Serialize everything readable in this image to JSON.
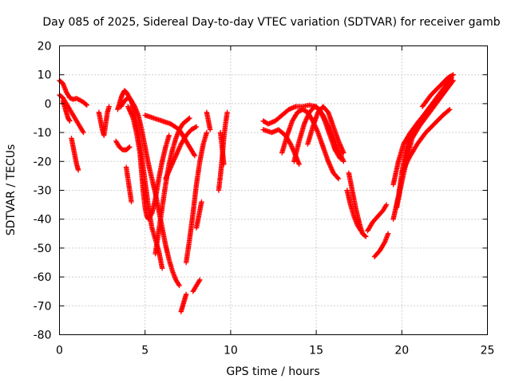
{
  "chart_data": {
    "type": "scatter",
    "title": "Day 085 of 2025, Sidereal Day-to-day VTEC variation (SDTVAR) for receiver gamb",
    "xlabel": "GPS time / hours",
    "ylabel": "SDTVAR / TECUs",
    "xlim": [
      0,
      25
    ],
    "ylim": [
      -80,
      20
    ],
    "xticks": [
      "0",
      "5",
      "10",
      "15",
      "20",
      "25"
    ],
    "yticks": [
      "20",
      "10",
      "0",
      "-10",
      "-20",
      "-30",
      "-40",
      "-50",
      "-60",
      "-70",
      "-80"
    ],
    "grid": true,
    "marker": "+",
    "color": "#ff0000",
    "series": [
      {
        "points": [
          [
            0.0,
            8
          ],
          [
            0.2,
            7
          ],
          [
            0.4,
            4
          ],
          [
            0.6,
            2
          ],
          [
            0.8,
            1.5
          ],
          [
            1.0,
            1.8
          ],
          [
            1.2,
            1.2
          ],
          [
            1.4,
            0.5
          ],
          [
            1.6,
            -0.5
          ]
        ]
      },
      {
        "points": [
          [
            0.0,
            3
          ],
          [
            0.2,
            2
          ],
          [
            0.4,
            0
          ],
          [
            0.6,
            -2
          ],
          [
            0.8,
            -4
          ],
          [
            1.0,
            -6
          ],
          [
            1.2,
            -8
          ],
          [
            1.4,
            -10
          ]
        ]
      },
      {
        "points": [
          [
            0.2,
            1
          ],
          [
            0.3,
            -1
          ],
          [
            0.4,
            -3
          ],
          [
            0.5,
            -5
          ],
          [
            0.6,
            -6
          ]
        ]
      },
      {
        "points": [
          [
            0.7,
            -12
          ],
          [
            0.8,
            -15
          ],
          [
            0.9,
            -18
          ],
          [
            1.0,
            -21
          ],
          [
            1.1,
            -23
          ]
        ]
      },
      {
        "points": [
          [
            2.3,
            -3
          ],
          [
            2.4,
            -6
          ],
          [
            2.5,
            -9
          ],
          [
            2.6,
            -11
          ],
          [
            2.7,
            -7
          ],
          [
            2.8,
            -3
          ],
          [
            2.9,
            -1
          ]
        ]
      },
      {
        "points": [
          [
            3.3,
            -13
          ],
          [
            3.5,
            -15
          ],
          [
            3.7,
            -16
          ],
          [
            3.9,
            -16
          ],
          [
            4.1,
            -15
          ]
        ]
      },
      {
        "points": [
          [
            3.4,
            -2
          ],
          [
            3.5,
            0
          ],
          [
            3.6,
            2
          ],
          [
            3.7,
            3.5
          ],
          [
            3.8,
            4.5
          ],
          [
            3.9,
            4
          ],
          [
            4.0,
            3
          ],
          [
            4.2,
            1
          ],
          [
            4.4,
            -4
          ],
          [
            4.6,
            -10
          ],
          [
            4.8,
            -18
          ],
          [
            5.0,
            -27
          ],
          [
            5.2,
            -36
          ],
          [
            5.4,
            -43
          ],
          [
            5.6,
            -47
          ],
          [
            5.8,
            -51
          ],
          [
            5.9,
            -54
          ],
          [
            6.0,
            -57
          ]
        ]
      },
      {
        "points": [
          [
            3.6,
            -1
          ],
          [
            3.8,
            1
          ],
          [
            4.0,
            2
          ],
          [
            4.2,
            1
          ],
          [
            4.4,
            -1
          ],
          [
            4.6,
            -4
          ],
          [
            4.8,
            -9
          ],
          [
            5.0,
            -15
          ],
          [
            5.2,
            -21
          ],
          [
            5.4,
            -26
          ],
          [
            5.6,
            -31
          ],
          [
            5.8,
            -37
          ],
          [
            6.0,
            -43
          ],
          [
            6.2,
            -49
          ],
          [
            6.4,
            -54
          ],
          [
            6.6,
            -58
          ],
          [
            6.8,
            -61
          ],
          [
            7.0,
            -63
          ]
        ]
      },
      {
        "points": [
          [
            4.0,
            -1
          ],
          [
            4.3,
            -5
          ],
          [
            4.5,
            -10
          ],
          [
            4.7,
            -17
          ],
          [
            4.8,
            -24
          ],
          [
            4.9,
            -31
          ],
          [
            5.0,
            -36
          ],
          [
            5.1,
            -39
          ],
          [
            5.2,
            -40
          ],
          [
            5.4,
            -38
          ],
          [
            5.6,
            -33
          ],
          [
            5.8,
            -26
          ],
          [
            6.0,
            -20
          ],
          [
            6.2,
            -15
          ],
          [
            6.4,
            -11
          ]
        ]
      },
      {
        "points": [
          [
            3.9,
            -22
          ],
          [
            4.0,
            -26
          ],
          [
            4.1,
            -30
          ],
          [
            4.2,
            -34
          ]
        ]
      },
      {
        "points": [
          [
            5.0,
            -4
          ],
          [
            5.5,
            -5
          ],
          [
            6.0,
            -6
          ],
          [
            6.5,
            -7
          ],
          [
            7.0,
            -9
          ],
          [
            7.3,
            -12
          ],
          [
            7.6,
            -15
          ],
          [
            7.9,
            -18
          ]
        ]
      },
      {
        "points": [
          [
            5.6,
            -52
          ],
          [
            5.8,
            -44
          ],
          [
            6.0,
            -36
          ],
          [
            6.2,
            -28
          ],
          [
            6.4,
            -21
          ],
          [
            6.6,
            -16
          ],
          [
            6.8,
            -12
          ],
          [
            7.0,
            -9
          ],
          [
            7.2,
            -7
          ],
          [
            7.4,
            -6
          ],
          [
            7.6,
            -5
          ]
        ]
      },
      {
        "points": [
          [
            6.2,
            -26
          ],
          [
            6.5,
            -22
          ],
          [
            6.8,
            -18
          ],
          [
            7.1,
            -14
          ],
          [
            7.4,
            -11
          ],
          [
            7.7,
            -9
          ],
          [
            8.0,
            -8
          ]
        ]
      },
      {
        "points": [
          [
            7.4,
            -55
          ],
          [
            7.6,
            -47
          ],
          [
            7.8,
            -38
          ],
          [
            8.0,
            -28
          ],
          [
            8.2,
            -20
          ],
          [
            8.4,
            -14
          ],
          [
            8.6,
            -10
          ]
        ]
      },
      {
        "points": [
          [
            7.1,
            -72
          ],
          [
            7.2,
            -70
          ],
          [
            7.3,
            -68
          ],
          [
            7.4,
            -66
          ]
        ]
      },
      {
        "points": [
          [
            7.8,
            -65
          ],
          [
            8.0,
            -63
          ],
          [
            8.2,
            -61
          ]
        ]
      },
      {
        "points": [
          [
            8.0,
            -43
          ],
          [
            8.1,
            -40
          ],
          [
            8.2,
            -37
          ],
          [
            8.3,
            -34
          ]
        ]
      },
      {
        "points": [
          [
            8.6,
            -3
          ],
          [
            8.8,
            -9
          ]
        ]
      },
      {
        "points": [
          [
            9.3,
            -30
          ],
          [
            9.4,
            -25
          ],
          [
            9.5,
            -19
          ],
          [
            9.6,
            -12
          ],
          [
            9.7,
            -7
          ],
          [
            9.8,
            -3
          ]
        ]
      },
      {
        "points": [
          [
            9.4,
            -10
          ],
          [
            9.5,
            -15
          ],
          [
            9.6,
            -21
          ]
        ]
      },
      {
        "points": [
          [
            11.9,
            -6
          ],
          [
            12.2,
            -7
          ],
          [
            12.6,
            -6
          ],
          [
            13.0,
            -4
          ],
          [
            13.4,
            -2
          ],
          [
            13.8,
            -1
          ],
          [
            14.2,
            -1
          ],
          [
            14.6,
            -0.5
          ],
          [
            15.0,
            -1
          ],
          [
            15.4,
            -4
          ],
          [
            15.8,
            -9
          ],
          [
            16.2,
            -15
          ],
          [
            16.6,
            -20
          ]
        ]
      },
      {
        "points": [
          [
            11.9,
            -9
          ],
          [
            12.4,
            -10
          ],
          [
            12.8,
            -9
          ],
          [
            13.2,
            -11
          ],
          [
            13.5,
            -14
          ],
          [
            13.8,
            -18
          ],
          [
            14.0,
            -21
          ]
        ]
      },
      {
        "points": [
          [
            13.0,
            -17
          ],
          [
            13.3,
            -11
          ],
          [
            13.6,
            -6
          ],
          [
            13.9,
            -3
          ],
          [
            14.2,
            -2
          ],
          [
            14.5,
            -3
          ],
          [
            14.8,
            -6
          ],
          [
            15.1,
            -10
          ],
          [
            15.4,
            -15
          ],
          [
            15.7,
            -20
          ],
          [
            16.0,
            -24
          ],
          [
            16.3,
            -26
          ]
        ]
      },
      {
        "points": [
          [
            13.7,
            -20
          ],
          [
            14.0,
            -13
          ],
          [
            14.3,
            -7
          ],
          [
            14.6,
            -3
          ],
          [
            14.9,
            -1
          ],
          [
            15.2,
            -2
          ],
          [
            15.5,
            -6
          ],
          [
            15.8,
            -11
          ],
          [
            16.1,
            -16
          ],
          [
            16.4,
            -19
          ]
        ]
      },
      {
        "points": [
          [
            14.5,
            -14
          ],
          [
            14.8,
            -8
          ],
          [
            15.1,
            -3
          ],
          [
            15.4,
            -1
          ],
          [
            15.7,
            -3
          ],
          [
            16.0,
            -8
          ],
          [
            16.3,
            -13
          ],
          [
            16.6,
            -17
          ]
        ]
      },
      {
        "points": [
          [
            16.9,
            -24
          ],
          [
            17.1,
            -30
          ],
          [
            17.3,
            -36
          ],
          [
            17.5,
            -41
          ],
          [
            17.7,
            -45
          ],
          [
            17.9,
            -46
          ]
        ]
      },
      {
        "points": [
          [
            16.8,
            -30
          ],
          [
            17.0,
            -35
          ],
          [
            17.2,
            -39
          ],
          [
            17.4,
            -42
          ],
          [
            17.6,
            -44
          ]
        ]
      },
      {
        "points": [
          [
            18.0,
            -44
          ],
          [
            18.3,
            -41
          ],
          [
            18.6,
            -39
          ],
          [
            18.9,
            -37
          ],
          [
            19.1,
            -35
          ]
        ]
      },
      {
        "points": [
          [
            18.4,
            -53
          ],
          [
            18.7,
            -51
          ],
          [
            19.0,
            -48
          ],
          [
            19.2,
            -45
          ]
        ]
      },
      {
        "points": [
          [
            19.5,
            -40
          ],
          [
            19.8,
            -32
          ],
          [
            20.0,
            -24
          ],
          [
            20.2,
            -17
          ],
          [
            20.5,
            -11
          ],
          [
            20.9,
            -7
          ],
          [
            21.4,
            -3
          ],
          [
            21.9,
            1
          ],
          [
            22.4,
            5
          ],
          [
            22.9,
            9
          ]
        ]
      },
      {
        "points": [
          [
            19.7,
            -36
          ],
          [
            20.0,
            -27
          ],
          [
            20.3,
            -19
          ],
          [
            20.6,
            -12
          ],
          [
            21.0,
            -8
          ],
          [
            21.5,
            -4
          ],
          [
            22.0,
            0
          ],
          [
            22.5,
            4
          ],
          [
            23.0,
            8
          ]
        ]
      },
      {
        "points": [
          [
            19.5,
            -28
          ],
          [
            19.8,
            -20
          ],
          [
            20.1,
            -14
          ],
          [
            20.5,
            -10
          ],
          [
            21.0,
            -6
          ],
          [
            21.6,
            -2
          ],
          [
            22.2,
            2
          ],
          [
            22.8,
            7
          ]
        ]
      },
      {
        "points": [
          [
            20.0,
            -24
          ],
          [
            20.4,
            -19
          ],
          [
            20.9,
            -14
          ],
          [
            21.4,
            -10
          ],
          [
            21.9,
            -7
          ],
          [
            22.4,
            -4
          ],
          [
            22.8,
            -2
          ]
        ]
      },
      {
        "points": [
          [
            21.2,
            -1
          ],
          [
            21.7,
            3
          ],
          [
            22.2,
            6
          ],
          [
            22.7,
            9
          ],
          [
            23.0,
            10
          ]
        ]
      }
    ]
  }
}
